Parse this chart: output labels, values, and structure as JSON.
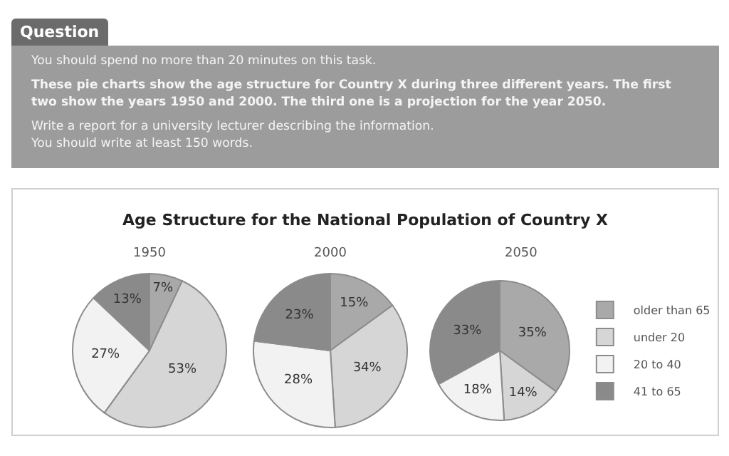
{
  "chart_data": [
    {
      "type": "other",
      "title": "Question",
      "annotations": [
        "You should spend no more than 20 minutes on this task.",
        "These pie charts show the age structure for Country X during three different years. The first two show the years 1950 and 2000. The third one is a projection for the year 2050.",
        "Write a report for a university lecturer describing the information.",
        "You should write at least 150 words."
      ]
    },
    {
      "type": "other",
      "title": "Age Structure for the National Population of Country X"
    },
    {
      "type": "pie",
      "title": "1950",
      "categories": [
        null,
        null,
        null,
        null
      ],
      "values": [
        7,
        53,
        27,
        13
      ],
      "value_labels": [
        "7%",
        "53%",
        "27%",
        "13%"
      ],
      "colors": [
        "#a9a9a9",
        "#d6d6d6",
        "#f2f2f2",
        "#8a8a8a"
      ]
    },
    {
      "type": "pie",
      "title": "2000",
      "categories": [
        null,
        null,
        null,
        null
      ],
      "values": [
        15,
        34,
        28,
        23
      ],
      "value_labels": [
        "15%",
        "34%",
        "28%",
        "23%"
      ],
      "colors": [
        "#a9a9a9",
        "#d6d6d6",
        "#f2f2f2",
        "#8a8a8a"
      ]
    },
    {
      "type": "pie",
      "title": "2050",
      "categories": [
        "older than 65",
        "under 20",
        "20 to 40",
        "41 to 65"
      ],
      "values": [
        35,
        14,
        18,
        33
      ],
      "value_labels": [
        "35%",
        "14%",
        "18%",
        "33%"
      ],
      "colors": [
        "#a9a9a9",
        "#d6d6d6",
        "#f2f2f2",
        "#8a8a8a"
      ],
      "legend": "right"
    }
  ]
}
